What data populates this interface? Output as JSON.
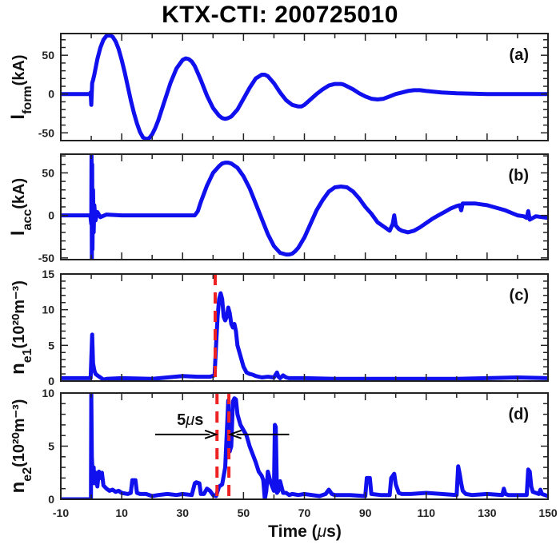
{
  "chart_data": {
    "type": "line",
    "title": "KTX-CTI: 200725010",
    "xlabel": "Time (μs)",
    "xlim": [
      -10,
      150
    ],
    "xticks": [
      -10,
      10,
      30,
      50,
      70,
      90,
      110,
      130,
      150
    ],
    "series_color": "#1010ee",
    "marker_color": "#ee2222",
    "panels": [
      {
        "id": "a",
        "tag": "(a)",
        "ylabel_main": "I",
        "ylabel_sub": "form",
        "ylabel_unit": "(kA)",
        "ylim": [
          -60,
          78
        ],
        "yticks": [
          -50,
          0,
          50
        ],
        "grid": false,
        "series": {
          "name": "I_form",
          "x": [
            -10,
            -0.5,
            -0.2,
            0,
            0.3,
            0.6,
            1,
            2,
            3,
            4,
            5,
            6,
            7,
            8,
            9,
            10,
            11,
            12,
            13,
            14,
            15,
            16,
            17,
            18,
            19,
            20,
            21,
            22,
            24,
            26,
            28,
            30,
            31,
            32,
            33,
            34,
            36,
            38,
            40,
            42,
            43,
            44,
            45,
            46,
            48,
            50,
            52,
            54,
            56,
            57,
            58,
            60,
            62,
            64,
            66,
            68,
            69,
            70,
            72,
            74,
            76,
            78,
            80,
            82,
            83,
            84,
            86,
            88,
            90,
            92,
            94,
            96,
            98,
            100,
            102,
            104,
            106,
            108,
            110,
            115,
            120,
            130,
            140,
            150
          ],
          "y": [
            0,
            0,
            2,
            -14,
            14,
            18,
            25,
            45,
            60,
            70,
            75,
            76,
            74,
            68,
            58,
            44,
            28,
            10,
            -8,
            -24,
            -38,
            -49,
            -56,
            -58,
            -57,
            -52,
            -44,
            -34,
            -10,
            14,
            33,
            44,
            46,
            45,
            42,
            36,
            18,
            -2,
            -18,
            -28,
            -31,
            -32,
            -31,
            -29,
            -20,
            -6,
            8,
            20,
            25,
            25,
            23,
            14,
            2,
            -8,
            -14,
            -16,
            -16,
            -14,
            -7,
            0,
            6,
            11,
            13,
            13,
            12,
            10,
            6,
            1,
            -3,
            -6,
            -7,
            -6,
            -3,
            0,
            2,
            4,
            5,
            5,
            4,
            2,
            1,
            0,
            0,
            0
          ]
        }
      },
      {
        "id": "b",
        "tag": "(b)",
        "ylabel_main": "I",
        "ylabel_sub": "acc",
        "ylabel_unit": "(kA)",
        "ylim": [
          -52,
          72
        ],
        "yticks": [
          -50,
          0,
          50
        ],
        "grid": false,
        "series": {
          "name": "I_acc",
          "x": [
            -10,
            -0.3,
            0,
            0.1,
            0.2,
            0.3,
            0.4,
            0.6,
            0.8,
            1,
            1.4,
            2,
            3,
            5,
            10,
            20,
            34,
            35,
            36,
            38,
            40,
            42,
            43,
            44,
            45,
            46,
            48,
            50,
            52,
            54,
            56,
            58,
            60,
            62,
            64,
            65,
            66,
            67,
            68,
            70,
            72,
            74,
            76,
            78,
            80,
            82,
            84,
            86,
            87,
            88,
            90,
            92,
            94,
            96,
            98,
            99,
            99.5,
            100,
            101,
            102,
            104,
            106,
            108,
            110,
            112,
            114,
            116,
            118,
            120,
            121,
            121.5,
            122,
            124,
            126,
            128,
            130,
            132,
            134,
            136,
            138,
            140,
            142,
            143,
            143.5,
            144,
            146,
            148,
            150
          ],
          "y": [
            0,
            0,
            -10,
            72,
            -52,
            60,
            -40,
            30,
            -20,
            12,
            -6,
            4,
            -2,
            1,
            0,
            0,
            0,
            5,
            16,
            35,
            50,
            58,
            61,
            62,
            62,
            61,
            56,
            46,
            32,
            14,
            -4,
            -22,
            -36,
            -44,
            -46,
            -46,
            -45,
            -42,
            -38,
            -26,
            -10,
            6,
            18,
            28,
            33,
            34,
            33,
            28,
            24,
            20,
            10,
            2,
            -8,
            -13,
            -18,
            -10,
            0,
            -12,
            -16,
            -18,
            -20,
            -18,
            -14,
            -9,
            -4,
            0,
            4,
            8,
            11,
            12,
            6,
            14,
            14,
            14,
            13,
            12,
            10,
            8,
            6,
            3,
            0,
            -1,
            -3,
            5,
            -5,
            -1,
            -2,
            -3
          ]
        }
      },
      {
        "id": "c",
        "tag": "(c)",
        "ylabel_main": "n",
        "ylabel_sub": "e1",
        "ylabel_unit": "(10²⁰m⁻³)",
        "ylim": [
          0,
          15
        ],
        "yticks": [
          0,
          5,
          10,
          15
        ],
        "grid": false,
        "marker_x": [
          40.7
        ],
        "series": {
          "name": "n_e1",
          "x": [
            -10,
            -0.2,
            0,
            0.3,
            0.6,
            1,
            1.4,
            2,
            3,
            4,
            5,
            10,
            20,
            25,
            30,
            35,
            39,
            40.5,
            41,
            41.5,
            42,
            42.5,
            43,
            43.5,
            44,
            44.5,
            45,
            45.5,
            46,
            46.5,
            47,
            47.5,
            48,
            49,
            50,
            51,
            52,
            53,
            54,
            55,
            56,
            58,
            60,
            61,
            61.5,
            62,
            63,
            64,
            65,
            70,
            80,
            100,
            120,
            140,
            150
          ],
          "y": [
            0.4,
            0.4,
            3,
            6.5,
            2.5,
            1.5,
            1,
            0.8,
            0.5,
            0.2,
            0.3,
            0.4,
            0.3,
            0.5,
            0.7,
            0.6,
            0.6,
            0.8,
            5,
            9,
            11.5,
            12.3,
            11.5,
            9,
            8.5,
            9,
            10.3,
            9.5,
            8,
            7.5,
            8,
            7,
            5,
            3.5,
            2,
            1.2,
            1.0,
            0.9,
            0.7,
            0.6,
            0.5,
            0.6,
            0.5,
            1.2,
            0.6,
            0.4,
            0.8,
            0.5,
            0.4,
            0.4,
            0.3,
            0.3,
            0.3,
            0.5,
            0.4
          ]
        }
      },
      {
        "id": "d",
        "tag": "(d)",
        "ylabel_main": "n",
        "ylabel_sub": "e2",
        "ylabel_unit": "(10²⁰m⁻³)",
        "ylim": [
          0,
          10
        ],
        "yticks": [
          0,
          5,
          10
        ],
        "grid": false,
        "marker_x": [
          41.3,
          45.2
        ],
        "annotation": {
          "text_value": "5",
          "text_unit": "μs",
          "arrow_left_from": 21,
          "arrow_left_to": 41,
          "arrow_right_from": 65,
          "arrow_right_to": 45.6,
          "arrow_y": 6.1
        },
        "series": {
          "name": "n_e2",
          "x": [
            -10,
            -0.1,
            0,
            0.2,
            0.5,
            0.8,
            1,
            1.5,
            2,
            2.5,
            3,
            3.5,
            4,
            5,
            6,
            7,
            8,
            9,
            10,
            12,
            13,
            13.5,
            14.5,
            15,
            16,
            18,
            20,
            22,
            25,
            28,
            30,
            33,
            34,
            34.5,
            35.5,
            36,
            37,
            38,
            39,
            40,
            41,
            42,
            43,
            44,
            45,
            45.5,
            46,
            46.5,
            47,
            47.5,
            48,
            48.5,
            49,
            50,
            51,
            52,
            54,
            55,
            56,
            56.5,
            57,
            57.5,
            58,
            59,
            60,
            60.3,
            60.6,
            61,
            61.5,
            62,
            63,
            64,
            65,
            66,
            68,
            70,
            75,
            77,
            78,
            79,
            80,
            85,
            90,
            90.5,
            91.5,
            92,
            95,
            98,
            98.5,
            99.5,
            100,
            101,
            102,
            105,
            110,
            115,
            120,
            120.5,
            121,
            121.5,
            122,
            123,
            125,
            130,
            135,
            135.5,
            136,
            137,
            140,
            143,
            143.5,
            144,
            144.5,
            145,
            147,
            147.5,
            148,
            150
          ],
          "y": [
            0,
            0,
            10,
            4,
            2,
            3,
            1.5,
            2.5,
            1.2,
            2.6,
            2,
            2.5,
            1.3,
            1,
            0.8,
            0.9,
            0.7,
            0.8,
            0.6,
            0.5,
            0.6,
            1.8,
            1.8,
            0.6,
            0.5,
            0.5,
            0.3,
            0.4,
            0.5,
            0.4,
            0.5,
            0.4,
            1.5,
            1.6,
            1.5,
            0.5,
            0.5,
            1.0,
            0.8,
            0.4,
            0.3,
            1.2,
            1.4,
            3,
            9.3,
            4.5,
            5,
            9.2,
            9.5,
            9.4,
            8,
            7.5,
            7,
            6.5,
            6,
            5,
            3.5,
            2.6,
            2.2,
            1.8,
            0,
            0.8,
            2.6,
            1.5,
            0.8,
            7,
            6.8,
            0.6,
            0.8,
            1.7,
            0.6,
            0.6,
            0.4,
            0.5,
            0.4,
            0.5,
            0.3,
            0.5,
            0.9,
            0.5,
            0.4,
            0.4,
            0.3,
            2,
            2,
            0.5,
            0.4,
            0.4,
            2.0,
            2.4,
            1.4,
            0.6,
            0.5,
            0.5,
            0.6,
            0.5,
            0.4,
            3.1,
            2.4,
            1.5,
            0.8,
            0.5,
            0.4,
            0.5,
            0.4,
            1.0,
            0.5,
            0.4,
            0.4,
            0.4,
            2.8,
            2.6,
            1.2,
            0.7,
            0.5,
            0.9,
            0.5,
            0.3
          ]
        }
      }
    ]
  }
}
